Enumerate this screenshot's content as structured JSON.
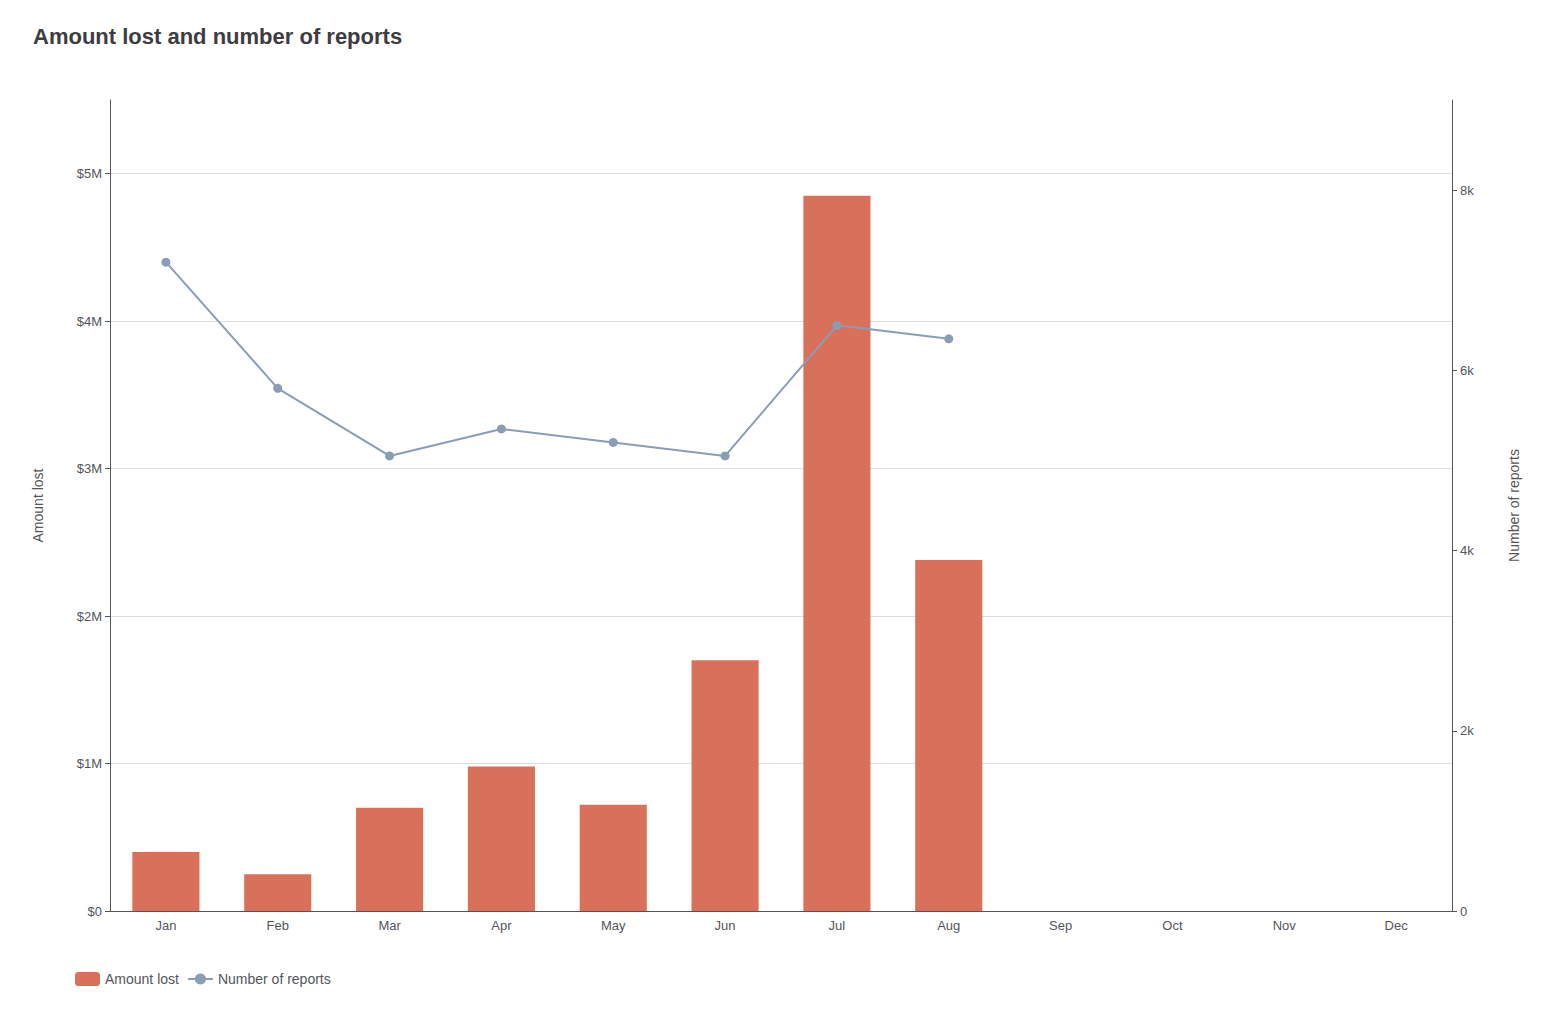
{
  "chart_data": {
    "type": "bar",
    "title": "Amount lost and number of reports",
    "categories": [
      "Jan",
      "Feb",
      "Mar",
      "Apr",
      "May",
      "Jun",
      "Jul",
      "Aug",
      "Sep",
      "Oct",
      "Nov",
      "Dec"
    ],
    "series": [
      {
        "name": "Amount lost",
        "type": "bar",
        "color": "#d9705a",
        "values": [
          400000,
          250000,
          700000,
          980000,
          720000,
          1700000,
          4850000,
          2380000,
          0,
          0,
          0,
          0
        ]
      },
      {
        "name": "Number of reports",
        "type": "line",
        "color": "#8a9db5",
        "marker": "circle",
        "axis": "y2",
        "values": [
          7200,
          5800,
          5050,
          5350,
          5200,
          5050,
          6500,
          6350,
          null,
          null,
          null,
          null
        ]
      }
    ],
    "ylabel": "Amount lost",
    "y2label": "Number of reports",
    "ylim": [
      0,
      5500000
    ],
    "yticks": [
      {
        "value": 0,
        "label": "$0"
      },
      {
        "value": 1000000,
        "label": "$1M"
      },
      {
        "value": 2000000,
        "label": "$2M"
      },
      {
        "value": 3000000,
        "label": "$3M"
      },
      {
        "value": 4000000,
        "label": "$4M"
      },
      {
        "value": 5000000,
        "label": "$5M"
      }
    ],
    "y2lim": [
      0,
      9000
    ],
    "y2ticks": [
      0,
      {
        "value": 2000,
        "label": "2k"
      },
      {
        "value": 4000,
        "label": "4k"
      },
      {
        "value": 6000,
        "label": "6k"
      },
      {
        "value": 8000,
        "label": "8k"
      }
    ],
    "grid": true,
    "legend": "lower left"
  }
}
